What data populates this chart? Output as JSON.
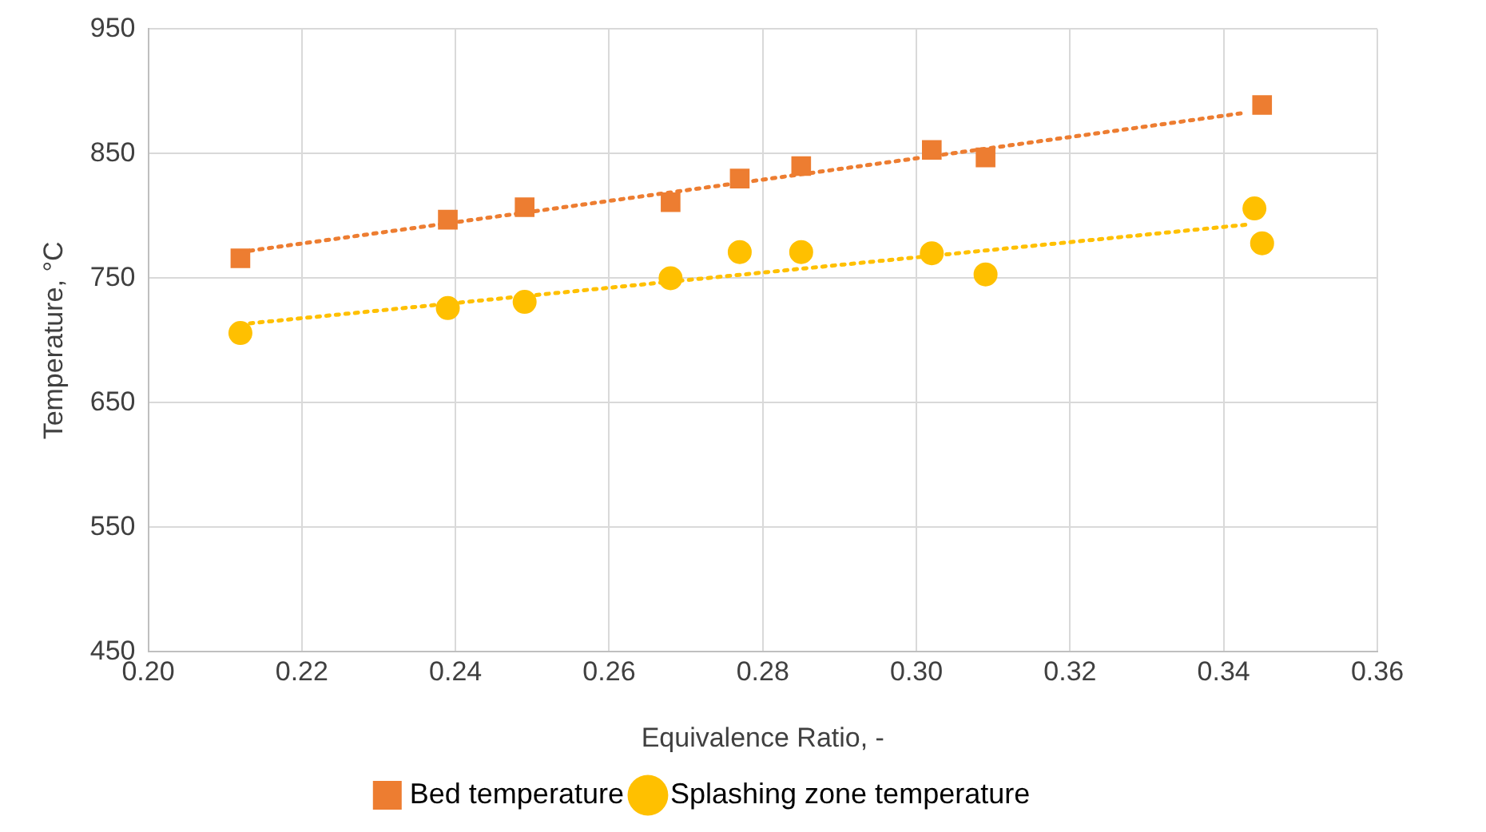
{
  "chart_data": {
    "type": "scatter",
    "xlabel": "Equivalence Ratio, -",
    "ylabel": "Temperature, °C",
    "xlim": [
      0.2,
      0.36
    ],
    "xticks": [
      {
        "value": 0.2,
        "label": "0.20"
      },
      {
        "value": 0.22,
        "label": "0.22"
      },
      {
        "value": 0.24,
        "label": "0.24"
      },
      {
        "value": 0.26,
        "label": "0.26"
      },
      {
        "value": 0.28,
        "label": "0.28"
      },
      {
        "value": 0.3,
        "label": "0.30"
      },
      {
        "value": 0.32,
        "label": "0.32"
      },
      {
        "value": 0.34,
        "label": "0.34"
      },
      {
        "value": 0.36,
        "label": "0.36"
      }
    ],
    "ylim": [
      450,
      950
    ],
    "yticks": [
      450,
      550,
      650,
      750,
      850,
      950
    ],
    "grid": true,
    "legend": "bottom",
    "series": [
      {
        "name": "Bed temperature",
        "color": "#ed7d31",
        "marker": "square",
        "x": [
          0.212,
          0.239,
          0.249,
          0.268,
          0.277,
          0.285,
          0.302,
          0.309,
          0.345
        ],
        "values": [
          766,
          797,
          807,
          811,
          830,
          840,
          853,
          847,
          889
        ]
      },
      {
        "name": "Splashing zone temperature",
        "color": "#ffc000",
        "marker": "circle",
        "x": [
          0.212,
          0.239,
          0.249,
          0.268,
          0.277,
          0.285,
          0.302,
          0.309,
          0.344,
          0.345
        ],
        "values": [
          706,
          726,
          731,
          750,
          771,
          771,
          770,
          753,
          806,
          778
        ]
      },
      {
        "type": "line",
        "color": "#ed7d31",
        "line_style": "dotted",
        "marker": "none",
        "x": [
          0.212,
          0.343
        ],
        "values": [
          771,
          883
        ]
      },
      {
        "type": "line",
        "color": "#ffc000",
        "line_style": "dotted",
        "marker": "none",
        "x": [
          0.212,
          0.343
        ],
        "values": [
          713,
          793
        ]
      }
    ]
  }
}
